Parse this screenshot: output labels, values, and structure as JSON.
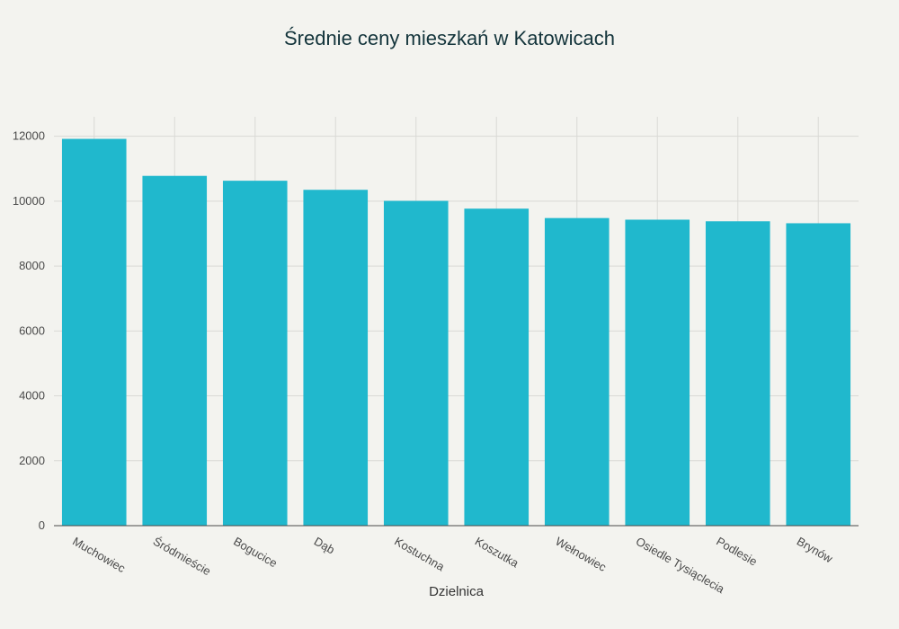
{
  "chart_data": {
    "type": "bar",
    "title": "Średnie ceny mieszkań w Katowicach",
    "xlabel": "Dzielnica",
    "ylabel": "",
    "categories": [
      "Muchowiec",
      "Śródmieście",
      "Bogucice",
      "Dąb",
      "Kostuchna",
      "Koszutka",
      "Wełnowiec",
      "Osiedle Tysiąclecia",
      "Podlesie",
      "Brynów"
    ],
    "values": [
      11920,
      10780,
      10630,
      10350,
      10010,
      9770,
      9480,
      9430,
      9380,
      9320
    ],
    "ylim": [
      0,
      12600
    ],
    "yticks": [
      0,
      2000,
      4000,
      6000,
      8000,
      10000,
      12000
    ],
    "grid": true,
    "colors": {
      "bar": "#20b8cd",
      "background": "#f3f3ef",
      "title": "#13343b"
    }
  }
}
